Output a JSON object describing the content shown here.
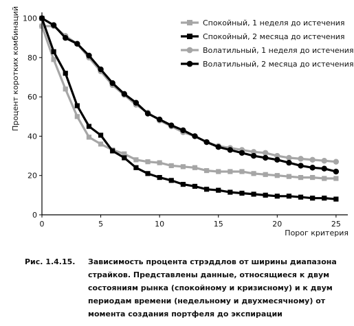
{
  "chart_data": {
    "type": "line",
    "title": "",
    "xlabel": "Порог критерия",
    "ylabel": "Процент коротких комбинаций",
    "xlim": [
      0,
      26
    ],
    "ylim": [
      0,
      103
    ],
    "x_ticks": [
      0,
      5,
      10,
      15,
      20,
      25
    ],
    "y_ticks": [
      0,
      20,
      40,
      60,
      80,
      100
    ],
    "grid": false,
    "legend_position": "top-right",
    "x": [
      0,
      1,
      2,
      3,
      4,
      5,
      6,
      7,
      8,
      9,
      10,
      11,
      12,
      13,
      14,
      15,
      16,
      17,
      18,
      19,
      20,
      21,
      22,
      23,
      24,
      25
    ],
    "series": [
      {
        "name": "Спокойный, 1 неделя до истечения",
        "color": "#a6a6a6",
        "marker": "square",
        "values": [
          96,
          79,
          64,
          50,
          39.5,
          36,
          33,
          31,
          28,
          27,
          26.5,
          25,
          24.5,
          24,
          22.5,
          22,
          22,
          22,
          21,
          20.5,
          20,
          19.5,
          19,
          19,
          18.5,
          18.5
        ]
      },
      {
        "name": "Спокойный, 2 месяца до истечения",
        "color": "#000000",
        "marker": "square",
        "values": [
          100,
          83,
          72,
          55.5,
          45,
          40.5,
          32.5,
          29,
          24,
          21,
          19,
          17.5,
          15.5,
          14.5,
          13,
          12.5,
          11.5,
          11,
          10.5,
          10,
          9.5,
          9.5,
          9,
          8.5,
          8.5,
          8
        ]
      },
      {
        "name": "Волатильный, 1 неделя до истечения",
        "color": "#a6a6a6",
        "marker": "circle",
        "values": [
          96,
          96,
          91,
          87,
          80,
          73,
          66,
          61,
          56,
          52,
          48,
          45,
          42,
          40,
          37,
          35,
          34,
          33,
          32,
          31.5,
          30,
          29,
          28.5,
          28,
          27.5,
          27
        ]
      },
      {
        "name": "Волатильный, 2 месяца до истечения",
        "color": "#000000",
        "marker": "circle",
        "values": [
          100,
          96.5,
          90,
          87,
          81,
          74,
          67,
          61.5,
          57,
          51.5,
          48.5,
          45.5,
          43,
          40,
          37,
          34.5,
          33,
          31.5,
          30,
          29,
          28,
          26.5,
          25,
          24,
          23.5,
          22
        ]
      }
    ]
  },
  "caption": {
    "label": "Рис. 1.4.15.",
    "text": "Зависимость процента стрэддлов от ширины диапазона страйков. Представлены данные, относящиеся к двум состояниям рынка (спокойному и кризисному) и к двум периодам времени (недельному и двухмесячному) от момента создания портфеля до экспирации"
  }
}
